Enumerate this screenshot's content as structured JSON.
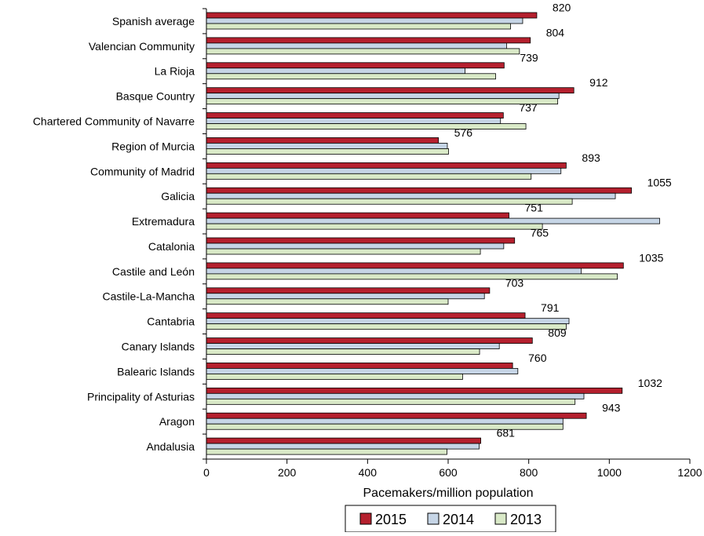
{
  "chart_data": {
    "type": "bar",
    "orientation": "horizontal",
    "xlabel": "Pacemakers/million population",
    "ylabel": "",
    "xlim": [
      0,
      1200
    ],
    "xticks": [
      0,
      200,
      400,
      600,
      800,
      1000,
      1200
    ],
    "grid": false,
    "legend_position": "bottom",
    "categories": [
      "Spanish average",
      "Valencian Community",
      "La Rioja",
      "Basque Country",
      "Chartered Community of Navarre",
      "Region of Murcia",
      "Community of Madrid",
      "Galicia",
      "Extremadura",
      "Catalonia",
      "Castile and León",
      "Castile-La-Mancha",
      "Cantabria",
      "Canary Islands",
      "Balearic Islands",
      "Principality of Asturias",
      "Aragon",
      "Andalusia"
    ],
    "series": [
      {
        "name": "2015",
        "color": "#b5202e",
        "values": [
          820,
          804,
          739,
          912,
          737,
          576,
          893,
          1055,
          751,
          765,
          1035,
          703,
          791,
          809,
          760,
          1032,
          943,
          681
        ],
        "show_labels": true
      },
      {
        "name": "2014",
        "color": "#c6d5e6",
        "values": [
          785,
          745,
          642,
          875,
          730,
          598,
          880,
          1015,
          1125,
          738,
          930,
          690,
          900,
          727,
          773,
          937,
          885,
          677
        ],
        "show_labels": false
      },
      {
        "name": "2013",
        "color": "#d9e9c7",
        "values": [
          755,
          777,
          718,
          872,
          793,
          601,
          806,
          908,
          834,
          680,
          1020,
          600,
          893,
          678,
          636,
          915,
          885,
          597
        ],
        "show_labels": false
      }
    ]
  }
}
